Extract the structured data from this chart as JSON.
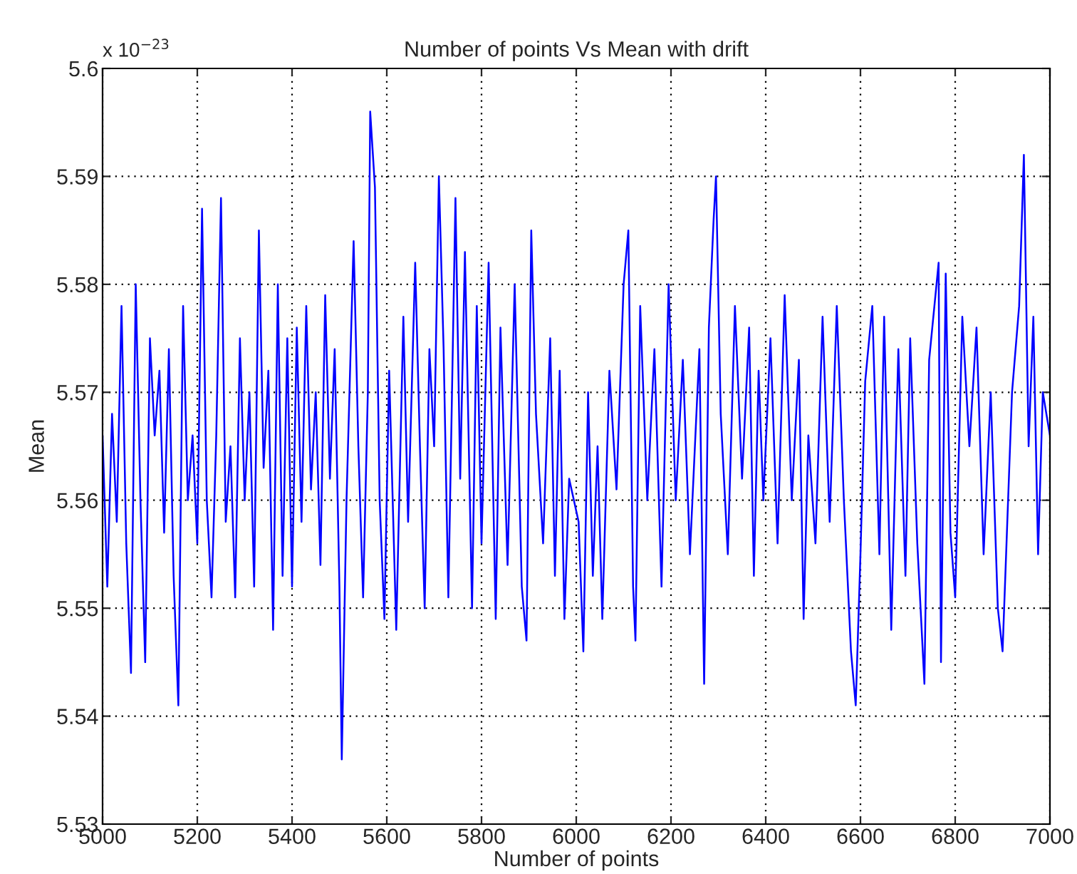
{
  "chart_data": {
    "type": "line",
    "title": "Number of points Vs Mean with drift",
    "xlabel": "Number of points",
    "ylabel": "Mean",
    "annotations": [
      "x 10$^{−23}$"
    ],
    "xlim": [
      5000,
      7000
    ],
    "xticks": [
      5000,
      5200,
      5400,
      5600,
      5800,
      6000,
      6200,
      6400,
      6600,
      6800,
      7000
    ],
    "ylim": [
      5.53,
      5.6
    ],
    "yticks": [
      5.53,
      5.54,
      5.55,
      5.56,
      5.57,
      5.58,
      5.59,
      {
        "value": 5.6,
        "label": "5.6"
      }
    ],
    "grid": true,
    "legend": false,
    "marker": "none",
    "line_style": "solid",
    "series": [
      {
        "color": "#0000ff",
        "x": [
          5000,
          5010,
          5020,
          5030,
          5040,
          5050,
          5060,
          5070,
          5080,
          5090,
          5100,
          5110,
          5120,
          5130,
          5140,
          5150,
          5160,
          5170,
          5180,
          5190,
          5200,
          5210,
          5220,
          5230,
          5240,
          5250,
          5260,
          5270,
          5280,
          5290,
          5300,
          5310,
          5320,
          5330,
          5340,
          5350,
          5360,
          5370,
          5380,
          5390,
          5400,
          5410,
          5420,
          5430,
          5440,
          5450,
          5460,
          5470,
          5480,
          5490,
          5500,
          5505,
          5515,
          5530,
          5540,
          5550,
          5560,
          5565,
          5575,
          5585,
          5595,
          5605,
          5620,
          5635,
          5645,
          5660,
          5670,
          5680,
          5690,
          5700,
          5710,
          5720,
          5730,
          5745,
          5755,
          5765,
          5780,
          5790,
          5800,
          5815,
          5830,
          5840,
          5855,
          5870,
          5885,
          5895,
          5905,
          5915,
          5930,
          5945,
          5955,
          5965,
          5975,
          5985,
          6005,
          6015,
          6025,
          6035,
          6045,
          6055,
          6070,
          6085,
          6100,
          6110,
          6120,
          6125,
          6135,
          6150,
          6165,
          6180,
          6195,
          6210,
          6225,
          6240,
          6260,
          6270,
          6280,
          6290,
          6295,
          6305,
          6320,
          6335,
          6350,
          6365,
          6375,
          6385,
          6395,
          6410,
          6425,
          6440,
          6455,
          6470,
          6480,
          6490,
          6505,
          6520,
          6535,
          6550,
          6565,
          6580,
          6590,
          6600,
          6610,
          6625,
          6640,
          6650,
          6665,
          6680,
          6695,
          6705,
          6720,
          6735,
          6745,
          6765,
          6770,
          6780,
          6790,
          6800,
          6815,
          6830,
          6845,
          6860,
          6875,
          6890,
          6900,
          6920,
          6935,
          6945,
          6955,
          6965,
          6975,
          6985,
          7000
        ],
        "values": [
          5.566,
          5.552,
          5.568,
          5.558,
          5.578,
          5.556,
          5.544,
          5.58,
          5.56,
          5.545,
          5.575,
          5.566,
          5.572,
          5.557,
          5.574,
          5.553,
          5.541,
          5.578,
          5.56,
          5.566,
          5.556,
          5.587,
          5.56,
          5.551,
          5.566,
          5.588,
          5.558,
          5.565,
          5.551,
          5.575,
          5.56,
          5.57,
          5.552,
          5.585,
          5.563,
          5.572,
          5.548,
          5.58,
          5.553,
          5.575,
          5.552,
          5.576,
          5.558,
          5.578,
          5.561,
          5.57,
          5.554,
          5.579,
          5.562,
          5.574,
          5.552,
          5.536,
          5.56,
          5.584,
          5.565,
          5.551,
          5.57,
          5.596,
          5.589,
          5.56,
          5.549,
          5.572,
          5.548,
          5.577,
          5.558,
          5.582,
          5.565,
          5.55,
          5.574,
          5.565,
          5.59,
          5.574,
          5.551,
          5.588,
          5.562,
          5.583,
          5.55,
          5.578,
          5.556,
          5.582,
          5.549,
          5.576,
          5.554,
          5.58,
          5.552,
          5.547,
          5.585,
          5.568,
          5.556,
          5.575,
          5.553,
          5.572,
          5.549,
          5.562,
          5.558,
          5.546,
          5.57,
          5.553,
          5.565,
          5.549,
          5.572,
          5.561,
          5.58,
          5.585,
          5.552,
          5.547,
          5.578,
          5.56,
          5.574,
          5.552,
          5.58,
          5.56,
          5.573,
          5.555,
          5.574,
          5.543,
          5.576,
          5.586,
          5.59,
          5.568,
          5.555,
          5.578,
          5.562,
          5.576,
          5.553,
          5.572,
          5.56,
          5.575,
          5.556,
          5.579,
          5.56,
          5.573,
          5.549,
          5.566,
          5.556,
          5.577,
          5.558,
          5.578,
          5.56,
          5.546,
          5.541,
          5.555,
          5.571,
          5.578,
          5.555,
          5.577,
          5.548,
          5.574,
          5.553,
          5.575,
          5.556,
          5.543,
          5.573,
          5.582,
          5.545,
          5.581,
          5.557,
          5.551,
          5.577,
          5.565,
          5.576,
          5.555,
          5.57,
          5.55,
          5.546,
          5.57,
          5.578,
          5.592,
          5.565,
          5.577,
          5.555,
          5.57,
          5.566
        ]
      }
    ]
  }
}
